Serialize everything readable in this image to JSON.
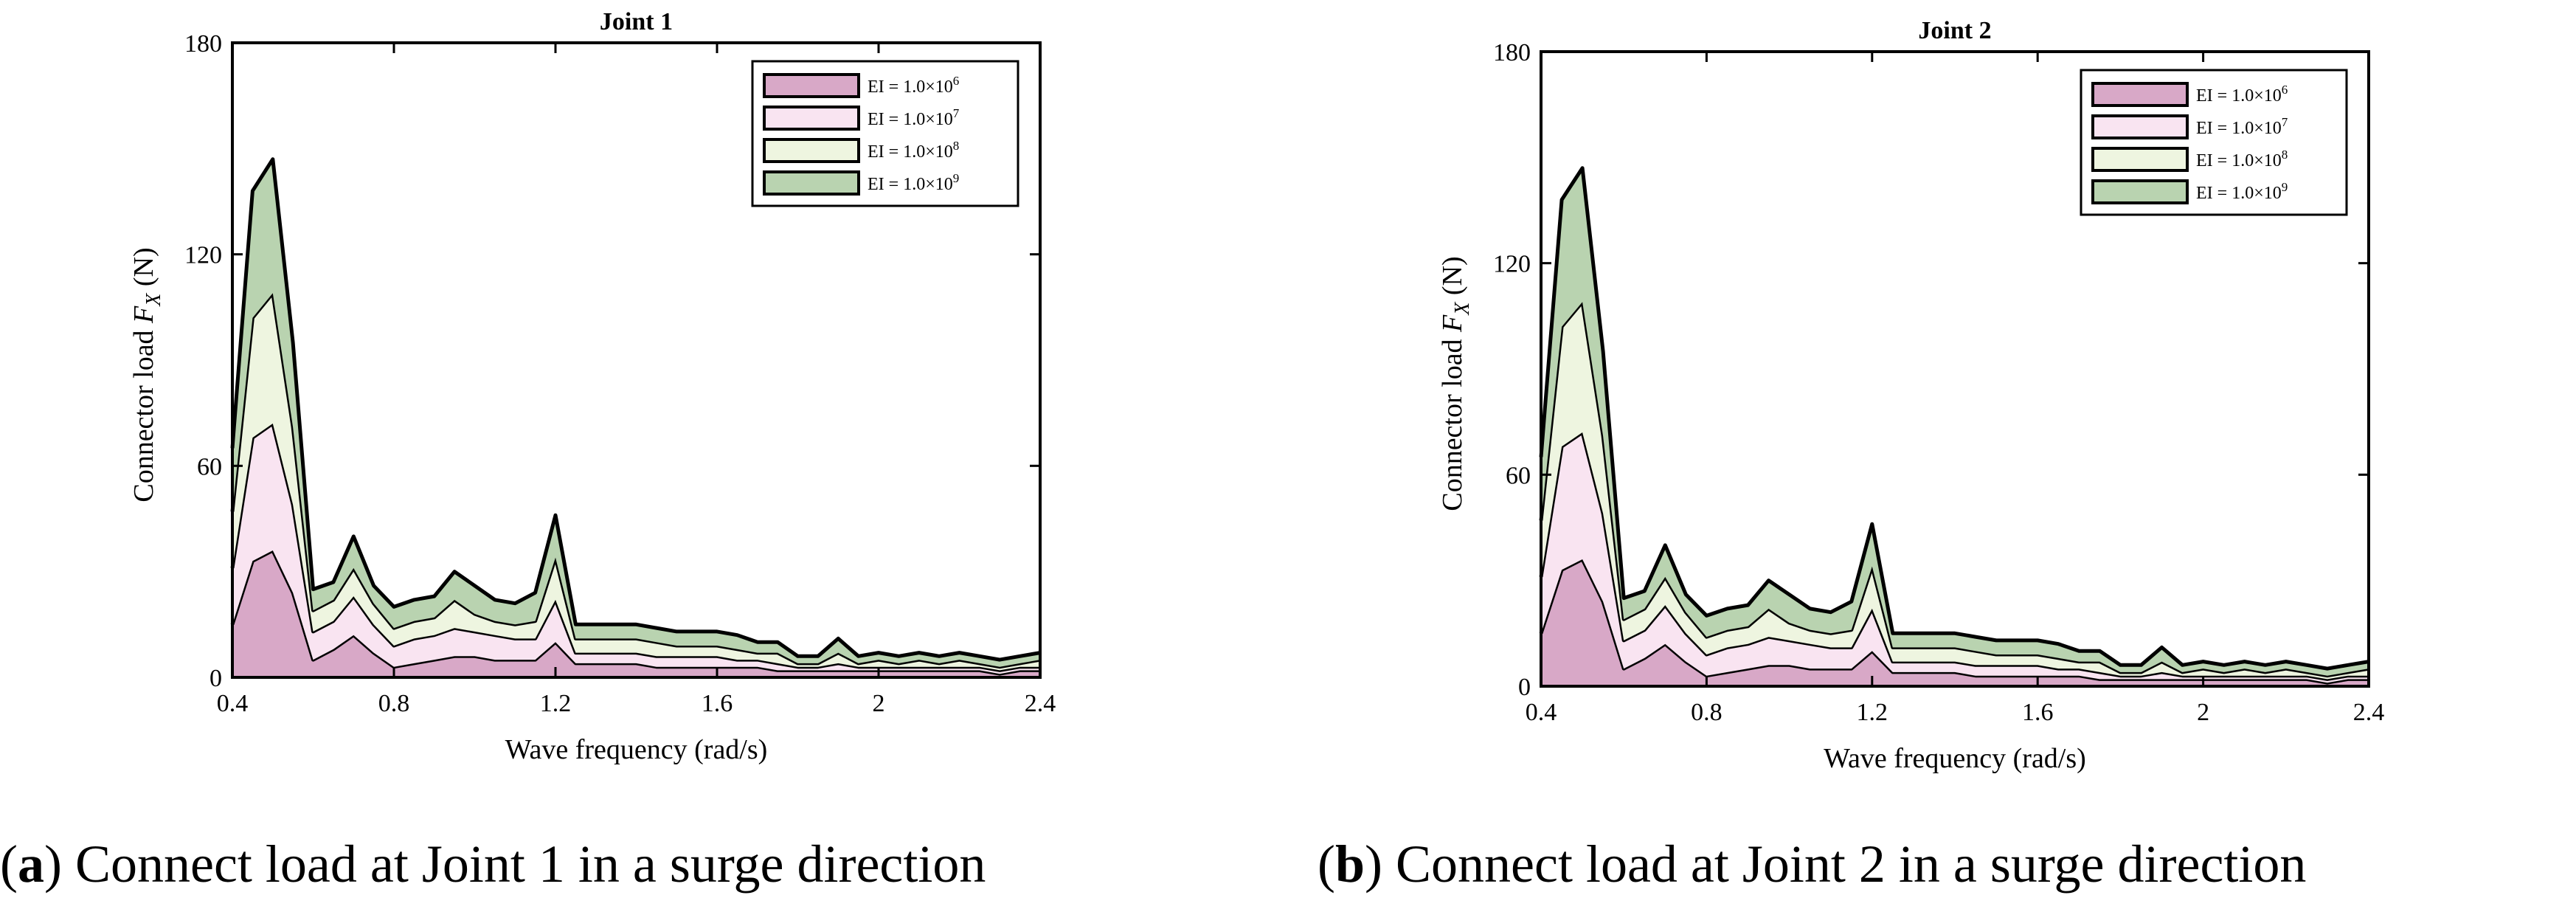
{
  "chart_data": [
    {
      "type": "area",
      "title": "Joint 1",
      "xlabel": "Wave frequency (rad/s)",
      "ylabel": "Connector load F_X (N)",
      "ylabel_main": "Connector load ",
      "ylabel_var": "F",
      "ylabel_sub": "X",
      "ylabel_unit": " (N)",
      "xlim": [
        0.4,
        2.4
      ],
      "ylim": [
        0,
        180
      ],
      "xticks": [
        0.4,
        0.8,
        1.2,
        1.6,
        2,
        2.4
      ],
      "yticks": [
        0,
        60,
        120,
        180
      ],
      "grid": false,
      "legend_position": "top-right",
      "stacked": true,
      "x": [
        0.4,
        0.45,
        0.5,
        0.55,
        0.6,
        0.65,
        0.7,
        0.75,
        0.8,
        0.85,
        0.9,
        0.95,
        1.0,
        1.05,
        1.1,
        1.15,
        1.2,
        1.25,
        1.3,
        1.35,
        1.4,
        1.45,
        1.5,
        1.55,
        1.6,
        1.65,
        1.7,
        1.75,
        1.8,
        1.85,
        1.9,
        1.95,
        2.0,
        2.05,
        2.1,
        2.15,
        2.2,
        2.25,
        2.3,
        2.35,
        2.4
      ],
      "series": [
        {
          "name": "EI = 1.0×10⁶",
          "legend_label": "EI = 1.0×10",
          "legend_exp": "6",
          "color": "#d8a8c7",
          "values": [
            15,
            33,
            36,
            24,
            5,
            8,
            12,
            7,
            3,
            4,
            5,
            6,
            6,
            5,
            5,
            5,
            10,
            4,
            4,
            4,
            4,
            3,
            3,
            3,
            3,
            3,
            3,
            2,
            2,
            2,
            2,
            2,
            2,
            2,
            2,
            2,
            2,
            2,
            1,
            2,
            2
          ]
        },
        {
          "name": "EI = 1.0×10⁷",
          "legend_label": "EI = 1.0×10",
          "legend_exp": "7",
          "color": "#f9e4f1",
          "values": [
            16,
            35,
            36,
            25,
            8,
            8,
            11,
            8,
            6,
            7,
            7,
            8,
            7,
            7,
            6,
            6,
            12,
            3,
            3,
            3,
            3,
            3,
            3,
            3,
            3,
            2,
            2,
            2,
            1,
            1,
            2,
            1,
            1,
            1,
            1,
            1,
            1,
            1,
            1,
            1,
            1
          ]
        },
        {
          "name": "EI = 1.0×10⁸",
          "legend_label": "EI = 1.0×10",
          "legend_exp": "8",
          "color": "#eef5e0",
          "values": [
            16,
            34,
            37,
            22,
            6,
            6,
            8,
            6,
            5,
            5,
            5,
            8,
            5,
            4,
            4,
            5,
            12,
            4,
            4,
            4,
            4,
            4,
            3,
            3,
            3,
            3,
            2,
            3,
            1,
            1,
            3,
            1,
            2,
            1,
            2,
            1,
            2,
            1,
            1,
            1,
            2
          ]
        },
        {
          "name": "EI = 1.0×10⁹",
          "legend_label": "EI = 1.0×10",
          "legend_exp": "9",
          "color": "#b9d3b0",
          "values": [
            18,
            36,
            38,
            24,
            6,
            5,
            9,
            5,
            6,
            6,
            6,
            8,
            8,
            6,
            6,
            8,
            12,
            4,
            4,
            4,
            4,
            4,
            4,
            4,
            4,
            4,
            3,
            3,
            2,
            2,
            4,
            2,
            2,
            2,
            2,
            2,
            2,
            2,
            2,
            2,
            2
          ]
        }
      ]
    },
    {
      "type": "area",
      "title": "Joint 2",
      "xlabel": "Wave frequency (rad/s)",
      "ylabel": "Connector load F_X (N)",
      "ylabel_main": "Connector load ",
      "ylabel_var": "F",
      "ylabel_sub": "X",
      "ylabel_unit": " (N)",
      "xlim": [
        0.4,
        2.4
      ],
      "ylim": [
        0,
        180
      ],
      "xticks": [
        0.4,
        0.8,
        1.2,
        1.6,
        2,
        2.4
      ],
      "yticks": [
        0,
        60,
        120,
        180
      ],
      "grid": false,
      "legend_position": "top-right",
      "stacked": true,
      "x": [
        0.4,
        0.45,
        0.5,
        0.55,
        0.6,
        0.65,
        0.7,
        0.75,
        0.8,
        0.85,
        0.9,
        0.95,
        1.0,
        1.05,
        1.1,
        1.15,
        1.2,
        1.25,
        1.3,
        1.35,
        1.4,
        1.45,
        1.5,
        1.55,
        1.6,
        1.65,
        1.7,
        1.75,
        1.8,
        1.85,
        1.9,
        1.95,
        2.0,
        2.05,
        2.1,
        2.15,
        2.2,
        2.25,
        2.3,
        2.35,
        2.4
      ],
      "series": [
        {
          "name": "EI = 1.0×10⁶",
          "legend_label": "EI = 1.0×10",
          "legend_exp": "6",
          "color": "#d8a8c7",
          "values": [
            15,
            33,
            36,
            24,
            5,
            8,
            12,
            7,
            3,
            4,
            5,
            6,
            6,
            5,
            5,
            5,
            10,
            4,
            4,
            4,
            4,
            3,
            3,
            3,
            3,
            3,
            3,
            2,
            2,
            2,
            2,
            2,
            2,
            2,
            2,
            2,
            2,
            2,
            1,
            2,
            2
          ]
        },
        {
          "name": "EI = 1.0×10⁷",
          "legend_label": "EI = 1.0×10",
          "legend_exp": "7",
          "color": "#f9e4f1",
          "values": [
            16,
            35,
            36,
            25,
            8,
            8,
            11,
            8,
            6,
            7,
            7,
            8,
            7,
            7,
            6,
            6,
            12,
            3,
            3,
            3,
            3,
            3,
            3,
            3,
            3,
            2,
            2,
            2,
            1,
            1,
            2,
            1,
            1,
            1,
            1,
            1,
            1,
            1,
            1,
            1,
            1
          ]
        },
        {
          "name": "EI = 1.0×10⁸",
          "legend_label": "EI = 1.0×10",
          "legend_exp": "8",
          "color": "#eef5e0",
          "values": [
            16,
            34,
            37,
            22,
            6,
            6,
            8,
            6,
            5,
            5,
            5,
            8,
            5,
            4,
            4,
            5,
            12,
            4,
            4,
            4,
            4,
            4,
            3,
            3,
            3,
            3,
            2,
            3,
            1,
            1,
            3,
            1,
            2,
            1,
            2,
            1,
            2,
            1,
            1,
            1,
            2
          ]
        },
        {
          "name": "EI = 1.0×10⁹",
          "legend_label": "EI = 1.0×10",
          "legend_exp": "9",
          "color": "#b9d3b0",
          "values": [
            18,
            36,
            38,
            24,
            6,
            5,
            9,
            5,
            6,
            6,
            6,
            8,
            8,
            6,
            6,
            8,
            12,
            4,
            4,
            4,
            4,
            4,
            4,
            4,
            4,
            4,
            3,
            3,
            2,
            2,
            4,
            2,
            2,
            2,
            2,
            2,
            2,
            2,
            2,
            2,
            2
          ]
        }
      ]
    }
  ],
  "captions": {
    "a_label": "a",
    "a_text": ") Connect load at Joint 1 in a surge direction",
    "b_label": "b",
    "b_text": ") Connect load at Joint 2 in a surge direction"
  }
}
